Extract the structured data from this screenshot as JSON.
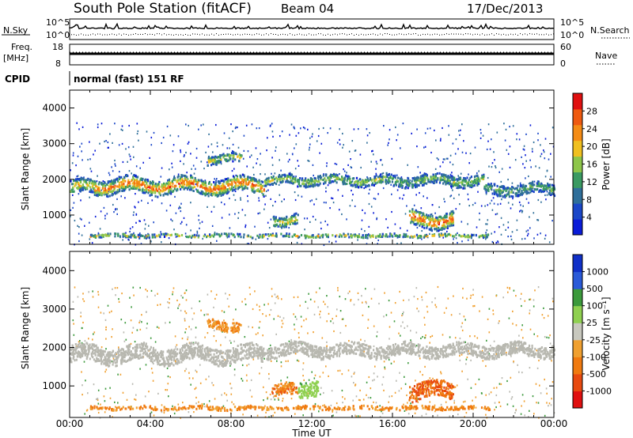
{
  "header": {
    "station": "South Pole Station (fitACF)",
    "beam": "Beam 04",
    "date": "17/Dec/2013"
  },
  "strip": {
    "nsky_label": "N.Sky",
    "nsearch_label": "N.Search",
    "nsky_ticks": [
      "10^5",
      "10^0"
    ],
    "nsearch_ticks": [
      "10^5",
      "10^0"
    ],
    "freq_label_1": "Freq.",
    "freq_label_2": "[MHz]",
    "freq_ticks": [
      "18",
      "8"
    ],
    "nave_label": "Nave",
    "nave_ticks": [
      "60",
      "0"
    ],
    "cpid_label": "CPID",
    "cpid_value": "normal (fast) 151 RF"
  },
  "colors": {
    "power_scale": [
      "#0a1cd8",
      "#1b47c8",
      "#2f6f9a",
      "#3a9a62",
      "#8ec64a",
      "#f0c020",
      "#f58c15",
      "#ef5a10",
      "#e01010"
    ],
    "velocity_scale": [
      "#1030c8",
      "#2a5ad8",
      "#3c9a3c",
      "#8fd050",
      "#c8c8be",
      "#f0a030",
      "#f07a10",
      "#e84a10",
      "#e01010"
    ],
    "ground_scatter": "#b8b8b0"
  },
  "chart_data": [
    {
      "type": "heatmap",
      "panel": "power",
      "xlabel": "",
      "ylabel": "Slant Range [km]",
      "x_ticks": [
        "00:00",
        "04:00",
        "08:00",
        "12:00",
        "16:00",
        "20:00",
        "00:00"
      ],
      "y_ticks": [
        "1000",
        "2000",
        "3000",
        "4000"
      ],
      "xlim_hours": [
        0,
        24
      ],
      "ylim_km": [
        180,
        4500
      ],
      "colorbar": {
        "label": "Power [dB]",
        "ticks": [
          "4",
          "8",
          "12",
          "16",
          "20",
          "24",
          "28"
        ],
        "range": [
          0,
          30
        ]
      },
      "bands": [
        {
          "t0": 0.0,
          "t1": 1.2,
          "r_center": 1800,
          "r_width": 380,
          "level": 0.55
        },
        {
          "t0": 1.2,
          "t1": 9.6,
          "r_center": 1850,
          "r_width": 420,
          "level": 0.75
        },
        {
          "t0": 9.6,
          "t1": 11.0,
          "r_center": 2000,
          "r_width": 250,
          "level": 0.45
        },
        {
          "t0": 11.0,
          "t1": 15.5,
          "r_center": 2000,
          "r_width": 260,
          "level": 0.4
        },
        {
          "t0": 15.5,
          "t1": 20.5,
          "r_center": 2000,
          "r_width": 300,
          "level": 0.35
        },
        {
          "t0": 20.5,
          "t1": 24.0,
          "r_center": 1750,
          "r_width": 300,
          "level": 0.3
        },
        {
          "t0": 10.0,
          "t1": 11.3,
          "r_center": 900,
          "r_width": 300,
          "level": 0.55
        },
        {
          "t0": 16.8,
          "t1": 19.0,
          "r_center": 900,
          "r_width": 420,
          "level": 0.8
        },
        {
          "t0": 6.8,
          "t1": 8.5,
          "r_center": 2600,
          "r_width": 250,
          "level": 0.45
        },
        {
          "t0": 1.0,
          "t1": 20.8,
          "r_center": 450,
          "r_width": 90,
          "level": 0.5
        }
      ]
    },
    {
      "type": "heatmap",
      "panel": "velocity",
      "xlabel": "Time UT",
      "ylabel": "Slant Range [km]",
      "x_ticks": [
        "00:00",
        "04:00",
        "08:00",
        "12:00",
        "16:00",
        "20:00",
        "00:00"
      ],
      "y_ticks": [
        "1000",
        "2000",
        "3000",
        "4000"
      ],
      "xlim_hours": [
        0,
        24
      ],
      "ylim_km": [
        180,
        4500
      ],
      "colorbar": {
        "label": "Velocity [m s⁻¹]",
        "ticks": [
          "1000",
          "500",
          "100",
          "25",
          "-25",
          "-100",
          "-500",
          "-1000"
        ],
        "range": [
          1200,
          -1200
        ]
      },
      "bands": [
        {
          "t0": 0.0,
          "t1": 9.6,
          "r_center": 1850,
          "r_width": 420,
          "level": 0.0,
          "ground": true
        },
        {
          "t0": 9.6,
          "t1": 24.0,
          "r_center": 1950,
          "r_width": 320,
          "level": 0.0,
          "ground": true
        },
        {
          "t0": 10.0,
          "t1": 11.3,
          "r_center": 900,
          "r_width": 300,
          "level": -0.6
        },
        {
          "t0": 11.3,
          "t1": 12.3,
          "r_center": 1000,
          "r_width": 400,
          "level": 0.35
        },
        {
          "t0": 16.8,
          "t1": 19.0,
          "r_center": 900,
          "r_width": 420,
          "level": -0.8
        },
        {
          "t0": 6.8,
          "t1": 8.5,
          "r_center": 2600,
          "r_width": 250,
          "level": -0.45
        },
        {
          "t0": 1.0,
          "t1": 20.8,
          "r_center": 450,
          "r_width": 90,
          "level": -0.5
        }
      ]
    }
  ]
}
